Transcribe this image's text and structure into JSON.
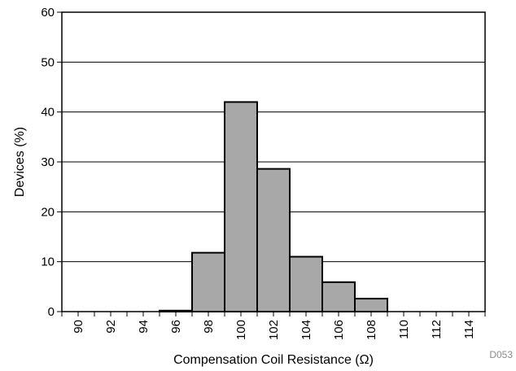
{
  "chart_data": {
    "type": "bar",
    "x_ticks": [
      "90",
      "92",
      "94",
      "96",
      "98",
      "100",
      "102",
      "104",
      "106",
      "108",
      "110",
      "112",
      "114"
    ],
    "bins": [
      {
        "from": 95,
        "to": 97,
        "value": 0.2
      },
      {
        "from": 97,
        "to": 99,
        "value": 11.8
      },
      {
        "from": 99,
        "to": 101,
        "value": 42
      },
      {
        "from": 101,
        "to": 103,
        "value": 28.6
      },
      {
        "from": 103,
        "to": 105,
        "value": 11
      },
      {
        "from": 105,
        "to": 107,
        "value": 5.9
      },
      {
        "from": 107,
        "to": 109,
        "value": 2.6
      }
    ],
    "xlim": [
      89,
      115
    ],
    "ylim": [
      0,
      60
    ],
    "y_ticks": [
      0,
      10,
      20,
      30,
      40,
      50,
      60
    ],
    "xlabel": "Compensation Coil Resistance (Ω)",
    "ylabel": "Devices (%)",
    "code": "D053",
    "grid": "horizontal",
    "bar_color": "#a8a8a8",
    "edge_color": "#000000"
  }
}
